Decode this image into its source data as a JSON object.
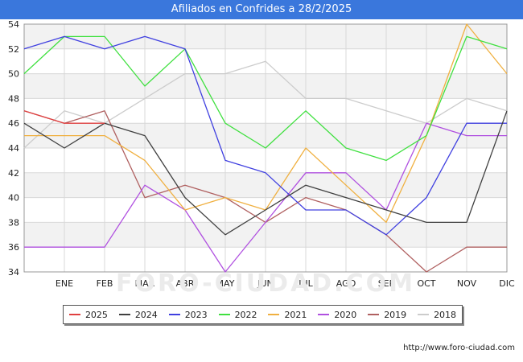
{
  "title": "Afiliados en Confrides a 28/2/2025",
  "source_text": "http://www.foro-ciudad.com",
  "watermark": "FORO-CIUDAD.COM",
  "chart_data": {
    "type": "line",
    "title": "Afiliados en Confrides a 28/2/2025",
    "xlabel": "",
    "ylabel": "",
    "categories": [
      "",
      "ENE",
      "FEB",
      "MAR",
      "ABR",
      "MAY",
      "JUN",
      "JUL",
      "AGO",
      "SEP",
      "OCT",
      "NOV",
      "DIC"
    ],
    "ylim": [
      34,
      54
    ],
    "yticks": [
      34,
      36,
      38,
      40,
      42,
      44,
      46,
      48,
      50,
      52,
      54
    ],
    "grid": true,
    "legend_position": "bottom",
    "series": [
      {
        "name": "2025",
        "color": "#e04040",
        "values": [
          47,
          46,
          46,
          null,
          null,
          null,
          null,
          null,
          null,
          null,
          null,
          null,
          null
        ]
      },
      {
        "name": "2024",
        "color": "#404040",
        "values": [
          46,
          44,
          46,
          45,
          40,
          37,
          39,
          41,
          40,
          39,
          38,
          38,
          47
        ]
      },
      {
        "name": "2023",
        "color": "#4040e0",
        "values": [
          52,
          53,
          52,
          53,
          52,
          43,
          42,
          39,
          39,
          37,
          40,
          46,
          46
        ]
      },
      {
        "name": "2022",
        "color": "#40e040",
        "values": [
          50,
          53,
          53,
          49,
          52,
          46,
          44,
          47,
          44,
          43,
          45,
          53,
          52
        ]
      },
      {
        "name": "2021",
        "color": "#f0b040",
        "values": [
          45,
          45,
          45,
          43,
          39,
          40,
          39,
          44,
          41,
          38,
          45,
          54,
          50
        ]
      },
      {
        "name": "2020",
        "color": "#b050e0",
        "values": [
          36,
          36,
          36,
          41,
          39,
          34,
          38,
          42,
          42,
          39,
          46,
          45,
          45
        ]
      },
      {
        "name": "2019",
        "color": "#b06060",
        "values": [
          47,
          46,
          47,
          40,
          41,
          40,
          38,
          40,
          39,
          37,
          34,
          36,
          36
        ]
      },
      {
        "name": "2018",
        "color": "#cccccc",
        "values": [
          44,
          47,
          46,
          48,
          50,
          50,
          51,
          48,
          48,
          47,
          46,
          48,
          47
        ]
      }
    ]
  }
}
